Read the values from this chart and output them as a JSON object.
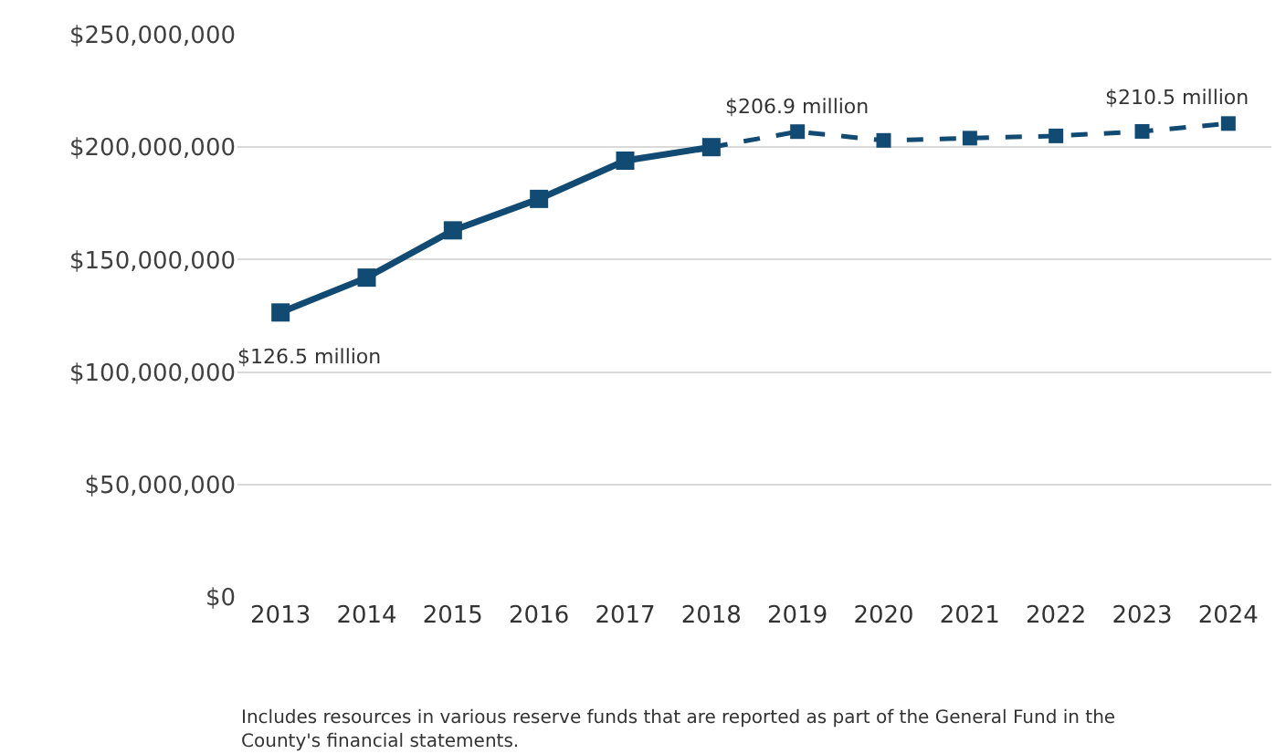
{
  "chart_data": {
    "type": "line",
    "categories": [
      "2013",
      "2014",
      "2015",
      "2016",
      "2017",
      "2018",
      "2019",
      "2020",
      "2021",
      "2022",
      "2023",
      "2024"
    ],
    "series": [
      {
        "color": "#114a72",
        "line_style": "solid",
        "values": [
          126500000,
          142000000,
          163000000,
          177000000,
          194000000,
          200000000,
          null,
          null,
          null,
          null,
          null,
          null
        ]
      },
      {
        "color": "#114a72",
        "line_style": "dashed",
        "values": [
          null,
          null,
          null,
          null,
          null,
          200000000,
          206900000,
          203000000,
          204000000,
          205000000,
          207000000,
          210500000
        ]
      }
    ],
    "marker": "square",
    "ylim": [
      0,
      250000000
    ],
    "yticks": [
      {
        "value": 0,
        "label": "$0"
      },
      {
        "value": 50000000,
        "label": "$50,000,000"
      },
      {
        "value": 100000000,
        "label": "$100,000,000"
      },
      {
        "value": 150000000,
        "label": "$150,000,000"
      },
      {
        "value": 200000000,
        "label": "$200,000,000"
      },
      {
        "value": 250000000,
        "label": "$250,000,000"
      }
    ],
    "grid": "y",
    "annotations": [
      {
        "text": "$126.5 million",
        "x": "2013",
        "y": 126500000
      },
      {
        "text": "$206.9 million",
        "x": "2019",
        "y": 206900000
      },
      {
        "text": "$210.5 million",
        "x": "2024",
        "y": 210500000
      },
      "Includes resources in various reserve funds that are reported as part of the General Fund in the County's financial statements."
    ]
  }
}
